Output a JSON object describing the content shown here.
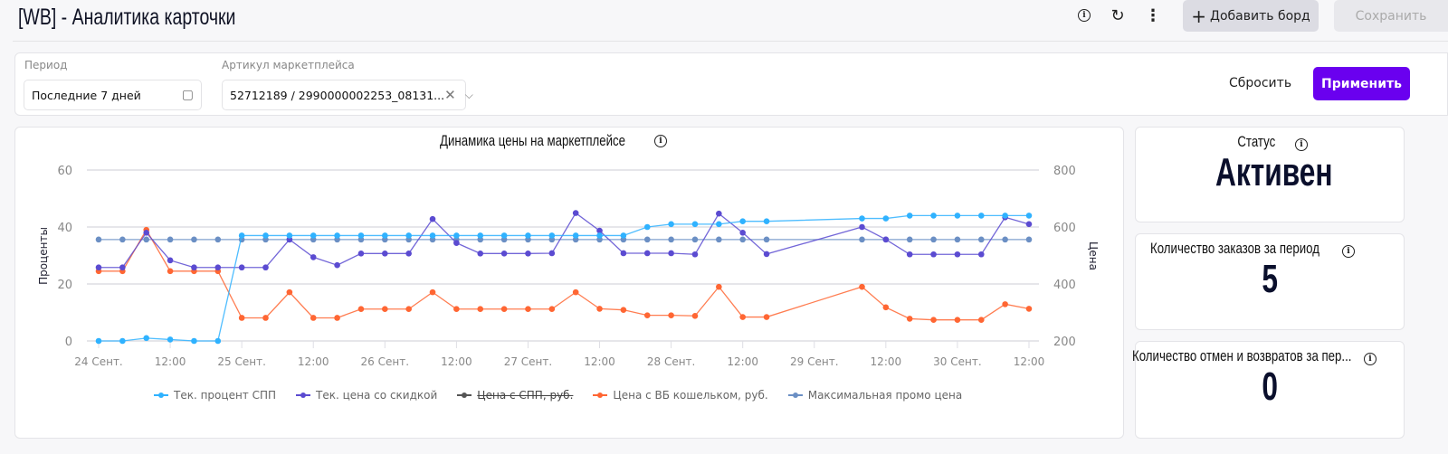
{
  "header": {
    "title": "[WB] - Аналитика карточки",
    "add_board": "Добавить борд",
    "save": "Сохранить"
  },
  "filters": {
    "period_label": "Период",
    "period_value": "Последние 7 дней",
    "article_label": "Артикул маркетплейса",
    "article_value": "52712189 / 2990000002253_08131...",
    "reset": "Сбросить",
    "apply": "Применить"
  },
  "cards": [
    {
      "title": "Статус",
      "value": "Активен"
    },
    {
      "title": "Количество заказов за период",
      "value": "5"
    },
    {
      "title": "Количество отмен и возвратов за пер...",
      "value": "0"
    }
  ],
  "chart_data": {
    "type": "line",
    "title": "Динамика цены на маркетплейсе",
    "ylabel": "Проценты",
    "ylabel_right": "Цена",
    "ylim": [
      0,
      60
    ],
    "ylim_right": [
      200,
      800
    ],
    "yticks": [
      "0",
      "20",
      "40",
      "60"
    ],
    "yticks_right": [
      "200",
      "400",
      "600",
      "800"
    ],
    "xticks": [
      {
        "h": 0,
        "label": "24 Сент."
      },
      {
        "h": 12,
        "label": "12:00"
      },
      {
        "h": 24,
        "label": "25 Сент."
      },
      {
        "h": 36,
        "label": "12:00"
      },
      {
        "h": 48,
        "label": "26 Сент."
      },
      {
        "h": 60,
        "label": "12:00"
      },
      {
        "h": 72,
        "label": "27 Сент."
      },
      {
        "h": 84,
        "label": "12:00"
      },
      {
        "h": 96,
        "label": "28 Сент."
      },
      {
        "h": 108,
        "label": "12:00"
      },
      {
        "h": 120,
        "label": "29 Сент."
      },
      {
        "h": 132,
        "label": "12:00"
      },
      {
        "h": 144,
        "label": "30 Сент."
      },
      {
        "h": 156,
        "label": "12:00"
      }
    ],
    "x_hours": [
      0,
      4,
      8,
      12,
      16,
      20,
      24,
      28,
      32,
      36,
      40,
      44,
      48,
      52,
      56,
      60,
      64,
      68,
      72,
      76,
      80,
      84,
      88,
      92,
      96,
      100,
      104,
      108,
      112,
      128,
      132,
      136,
      140,
      144,
      148,
      152,
      156
    ],
    "series": [
      {
        "name": "Тек. процент СПП",
        "axis": "left",
        "color": "#2fb2ff",
        "hidden": false,
        "values": [
          0,
          0,
          1,
          0.5,
          0,
          0,
          37,
          37,
          37,
          37,
          37,
          37,
          37,
          37,
          37,
          37,
          37,
          37,
          37,
          37,
          37,
          37,
          37,
          40,
          41,
          41,
          41,
          42,
          42,
          43,
          43,
          44,
          44,
          44,
          44,
          44,
          44
        ]
      },
      {
        "name": "Тек. цена со скидкой",
        "axis": "right",
        "color": "#5b4bd1",
        "hidden": false,
        "values": [
          458,
          458,
          580,
          483,
          458,
          458,
          458,
          458,
          556,
          494,
          466,
          507,
          507,
          507,
          628,
          544,
          507,
          507,
          507,
          508,
          649,
          587,
          508,
          508,
          508,
          504,
          647,
          580,
          505,
          600,
          556,
          504,
          504,
          504,
          504,
          634,
          610
        ]
      },
      {
        "name": "Цена с СПП, руб.",
        "axis": "right",
        "color": "#555555",
        "hidden": true,
        "values": []
      },
      {
        "name": "Цена с ВБ кошельком, руб.",
        "axis": "right",
        "color": "#ff6633",
        "hidden": false,
        "values": [
          445,
          445,
          590,
          445,
          445,
          445,
          281,
          281,
          371,
          281,
          281,
          312,
          312,
          312,
          371,
          312,
          312,
          312,
          312,
          312,
          371,
          313,
          309,
          290,
          290,
          288,
          390,
          284,
          284,
          390,
          318,
          278,
          274,
          274,
          274,
          329,
          313
        ]
      },
      {
        "name": "Максимальная промо цена",
        "axis": "right",
        "color": "#6b8fc4",
        "hidden": false,
        "values": [
          556,
          556,
          556,
          556,
          556,
          556,
          556,
          556,
          556,
          556,
          556,
          556,
          556,
          556,
          556,
          556,
          556,
          556,
          556,
          556,
          556,
          556,
          556,
          556,
          556,
          556,
          556,
          556,
          556,
          556,
          556,
          556,
          556,
          556,
          556,
          556,
          556
        ]
      }
    ]
  }
}
